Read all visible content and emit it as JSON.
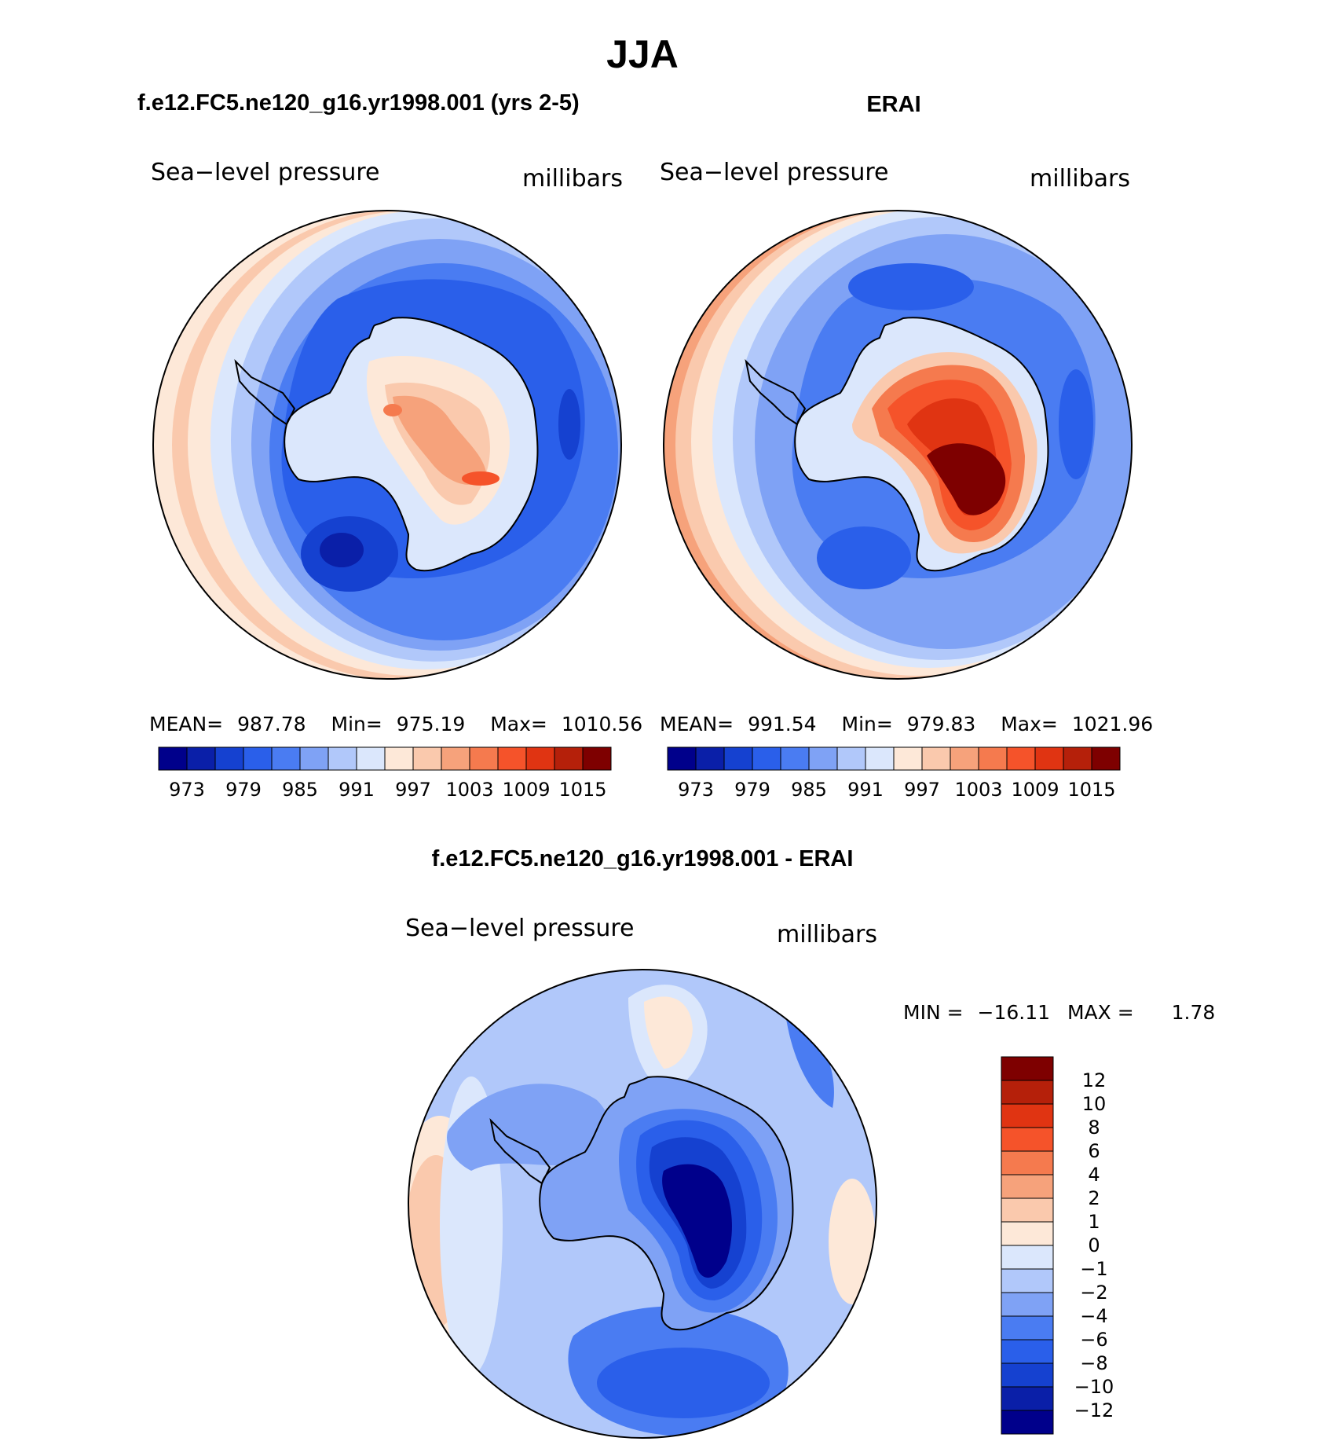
{
  "page_title": "JJA",
  "colors": {
    "abs_scale": [
      "#00008b",
      "#0a1fa8",
      "#1541d0",
      "#2a5fea",
      "#4a7cf2",
      "#7fa2f5",
      "#b1c8fa",
      "#dbe7fc",
      "#fde8d8",
      "#fac9ad",
      "#f6a27b",
      "#f57a4e",
      "#f5532a",
      "#e03412",
      "#b5200a",
      "#7e0000"
    ],
    "diff_scale": [
      "#00008b",
      "#0a1fa8",
      "#1541d0",
      "#2a5fea",
      "#4a7cf2",
      "#7fa2f5",
      "#b1c8fa",
      "#dbe7fc",
      "#fde8d8",
      "#fac9ad",
      "#f6a27b",
      "#f57a4e",
      "#f5532a",
      "#e03412",
      "#b5200a",
      "#7e0000"
    ]
  },
  "chart_data": [
    {
      "type": "heatmap",
      "id": "model",
      "title": "f.e12.FC5.ne120_g16.yr1998.001 (yrs 2-5)",
      "variable": "Sea−level pressure",
      "units": "millibars",
      "projection": "south polar stereographic",
      "stats": {
        "mean_label": "MEAN=",
        "mean": "987.78",
        "min_label": "Min=",
        "min": "975.19",
        "max_label": "Max=",
        "max": "1010.56"
      },
      "colorbar_ticks": [
        "973",
        "979",
        "985",
        "991",
        "997",
        "1003",
        "1009",
        "1015"
      ],
      "levels": [
        973,
        976,
        979,
        982,
        985,
        988,
        991,
        994,
        997,
        1000,
        1003,
        1006,
        1009,
        1012,
        1015
      ],
      "regions": {
        "ocean_low": 978,
        "antarctic_interior": 1002,
        "outer_ring": 995
      }
    },
    {
      "type": "heatmap",
      "id": "obs",
      "title": "ERAI",
      "variable": "Sea−level pressure",
      "units": "millibars",
      "projection": "south polar stereographic",
      "stats": {
        "mean_label": "MEAN=",
        "mean": "991.54",
        "min_label": "Min=",
        "min": "979.83",
        "max_label": "Max=",
        "max": "1021.96"
      },
      "colorbar_ticks": [
        "973",
        "979",
        "985",
        "991",
        "997",
        "1003",
        "1009",
        "1015"
      ],
      "levels": [
        973,
        976,
        979,
        982,
        985,
        988,
        991,
        994,
        997,
        1000,
        1003,
        1006,
        1009,
        1012,
        1015
      ],
      "regions": {
        "ocean_low": 982,
        "antarctic_interior": 1018,
        "outer_ring": 998
      }
    },
    {
      "type": "heatmap",
      "id": "diff",
      "title": "f.e12.FC5.ne120_g16.yr1998.001 - ERAI",
      "variable": "Sea−level pressure",
      "units": "millibars",
      "projection": "south polar stereographic",
      "stats": {
        "min_label": "MIN =",
        "min": "−16.11",
        "max_label": "MAX =",
        "max": "1.78"
      },
      "colorbar_ticks": [
        "12",
        "10",
        "8",
        "6",
        "4",
        "2",
        "1",
        "0",
        "−1",
        "−2",
        "−4",
        "−6",
        "−8",
        "−10",
        "−12"
      ],
      "levels": [
        -12,
        -10,
        -8,
        -6,
        -4,
        -2,
        -1,
        0,
        1,
        2,
        4,
        6,
        8,
        10,
        12
      ],
      "regions": {
        "antarctic_interior": -14,
        "ocean": -3,
        "outer_ring": 0.5
      }
    }
  ]
}
